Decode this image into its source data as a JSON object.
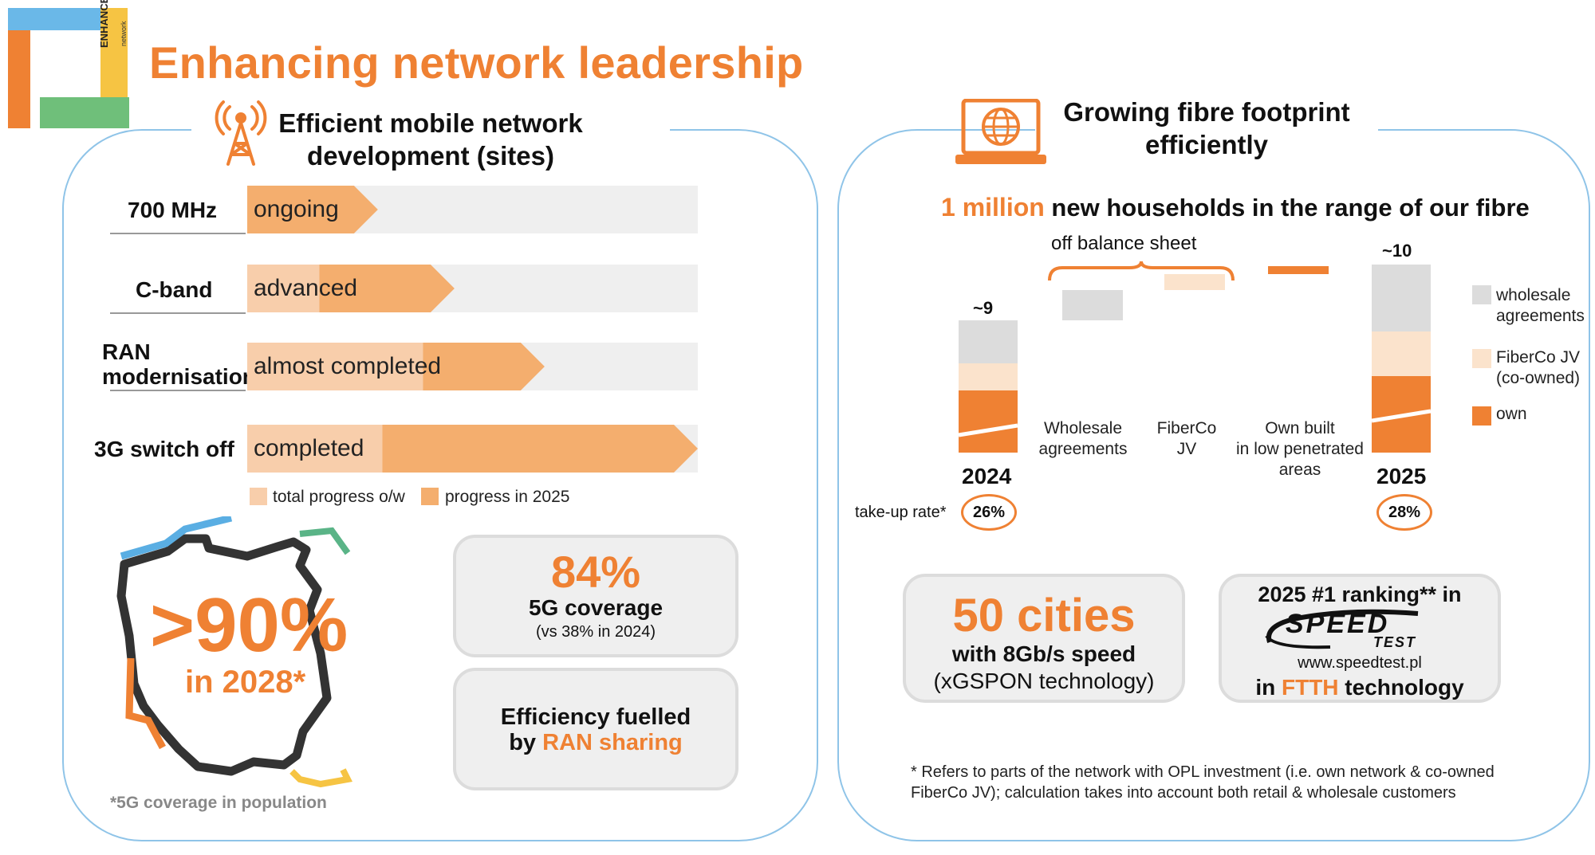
{
  "logo": {
    "text": "ENHANCE",
    "sub": "network"
  },
  "title": "Enhancing network leadership",
  "mobile": {
    "section_title_line1": "Efficient mobile network",
    "section_title_line2": "development (sites)",
    "bars": [
      {
        "label": "700 MHz",
        "status": "ongoing",
        "total_progress": 0.29,
        "progress_2025": 0.29
      },
      {
        "label": "C-band",
        "status": "advanced",
        "total_progress": 0.46,
        "progress_2025": 0.3
      },
      {
        "label_line1": "RAN",
        "label_line2": "modernisation",
        "status": "almost completed",
        "total_progress": 0.66,
        "progress_2025": 0.27
      },
      {
        "label": "3G switch off",
        "status": "completed",
        "total_progress": 1.0,
        "progress_2025": 0.7
      }
    ],
    "legend": {
      "total": "total progress o/w",
      "in_2025": "progress in 2025"
    },
    "coverage_big": ">90%",
    "coverage_year": "in 2028*",
    "coverage_note": "*5G coverage in population",
    "box1": {
      "value": "84%",
      "label": "5G coverage",
      "sub": "(vs 38% in 2024)"
    },
    "box2": {
      "line1": "Efficiency fuelled",
      "line2_prefix": "by ",
      "line2_highlight": "RAN sharing"
    }
  },
  "fibre": {
    "section_title_line1": "Growing fibre footprint",
    "section_title_line2": "efficiently",
    "headline_highlight": "1 million",
    "headline_rest": "new households in the range of our fibre",
    "off_balance": "off balance sheet",
    "bars": [
      {
        "year": "2024",
        "total_label": "~9",
        "take_up": "26%"
      },
      {
        "year": "2025",
        "total_label": "~10",
        "take_up": "28%"
      }
    ],
    "steps": [
      {
        "line1": "Wholesale",
        "line2": "agreements"
      },
      {
        "line1": "FiberCo",
        "line2": "JV"
      },
      {
        "line1": "Own built",
        "line2": "in low penetrated",
        "line3": "areas"
      }
    ],
    "take_up_label": "take-up rate*",
    "legend": [
      {
        "line1": "wholesale",
        "line2": "agreements",
        "color": "#dcdcdc"
      },
      {
        "line1": "FiberCo JV",
        "line2": "(co-owned)",
        "color": "#fbe3cc"
      },
      {
        "line1": "own",
        "color": "#ef8133"
      }
    ],
    "box1": {
      "value": "50 cities",
      "line1": "with 8Gb/s speed",
      "line2": "(xGSPON technology)"
    },
    "box2": {
      "line1": "2025 #1 ranking** in",
      "logo_main": "SPEED",
      "logo_sub": "TEST",
      "url": "www.speedtest.pl",
      "line3_prefix": "in ",
      "line3_highlight": "FTTH",
      "line3_suffix": " technology"
    },
    "footnote_line1": "* Refers to parts of the network with OPL investment (i.e. own network & co-owned",
    "footnote_line2": "FiberCo JV); calculation takes into account both retail & wholesale customers"
  },
  "colors": {
    "accent": "#ef8133",
    "light_orange": "#f4ae6e",
    "pale_orange": "#f8ceab",
    "grey": "#efefef",
    "panel_border": "#8fc4e8"
  }
}
